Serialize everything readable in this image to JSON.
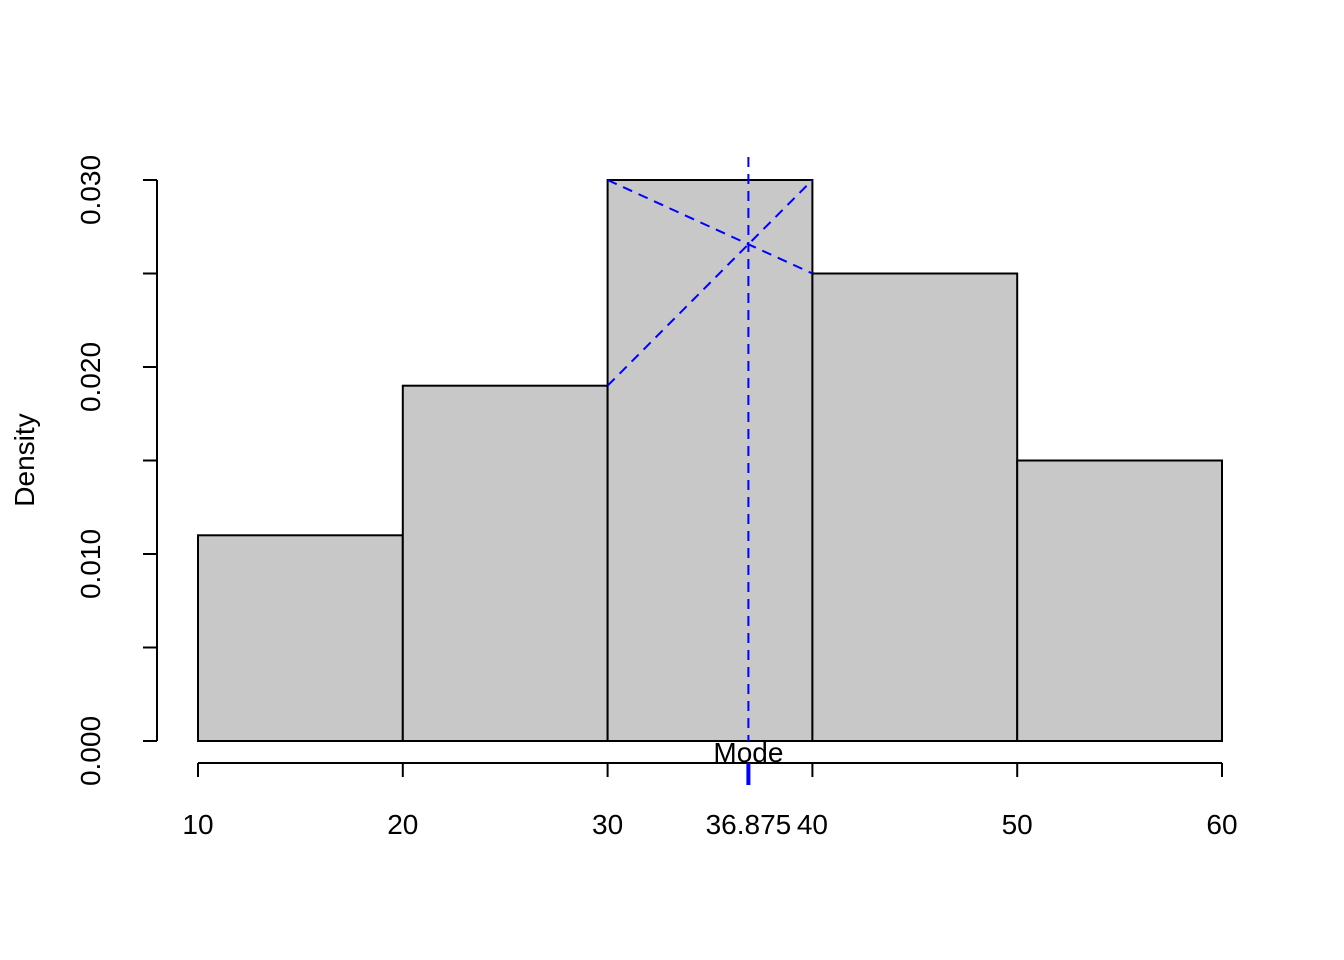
{
  "chart_data": {
    "type": "histogram",
    "y_label": "Density",
    "bins": [
      10,
      20,
      30,
      40,
      50,
      60
    ],
    "values": [
      0.011,
      0.019,
      0.03,
      0.025,
      0.015
    ],
    "color": "#c8c8c8",
    "xlim": [
      10,
      60
    ],
    "xticks": [
      10,
      20,
      30,
      40,
      50,
      60
    ],
    "ylim": [
      0,
      0.03
    ],
    "yticks": [
      {
        "value": 0,
        "label": "0.000"
      },
      {
        "value": 0.005,
        "label": null
      },
      {
        "value": 0.01,
        "label": "0.010"
      },
      {
        "value": 0.015,
        "label": null
      },
      {
        "value": 0.02,
        "label": "0.020"
      },
      {
        "value": 0.025,
        "label": null
      },
      {
        "value": 0.03,
        "label": "0.030"
      }
    ],
    "mode": {
      "label": "Mode",
      "value": 36.875,
      "color": "#0000ff"
    }
  }
}
